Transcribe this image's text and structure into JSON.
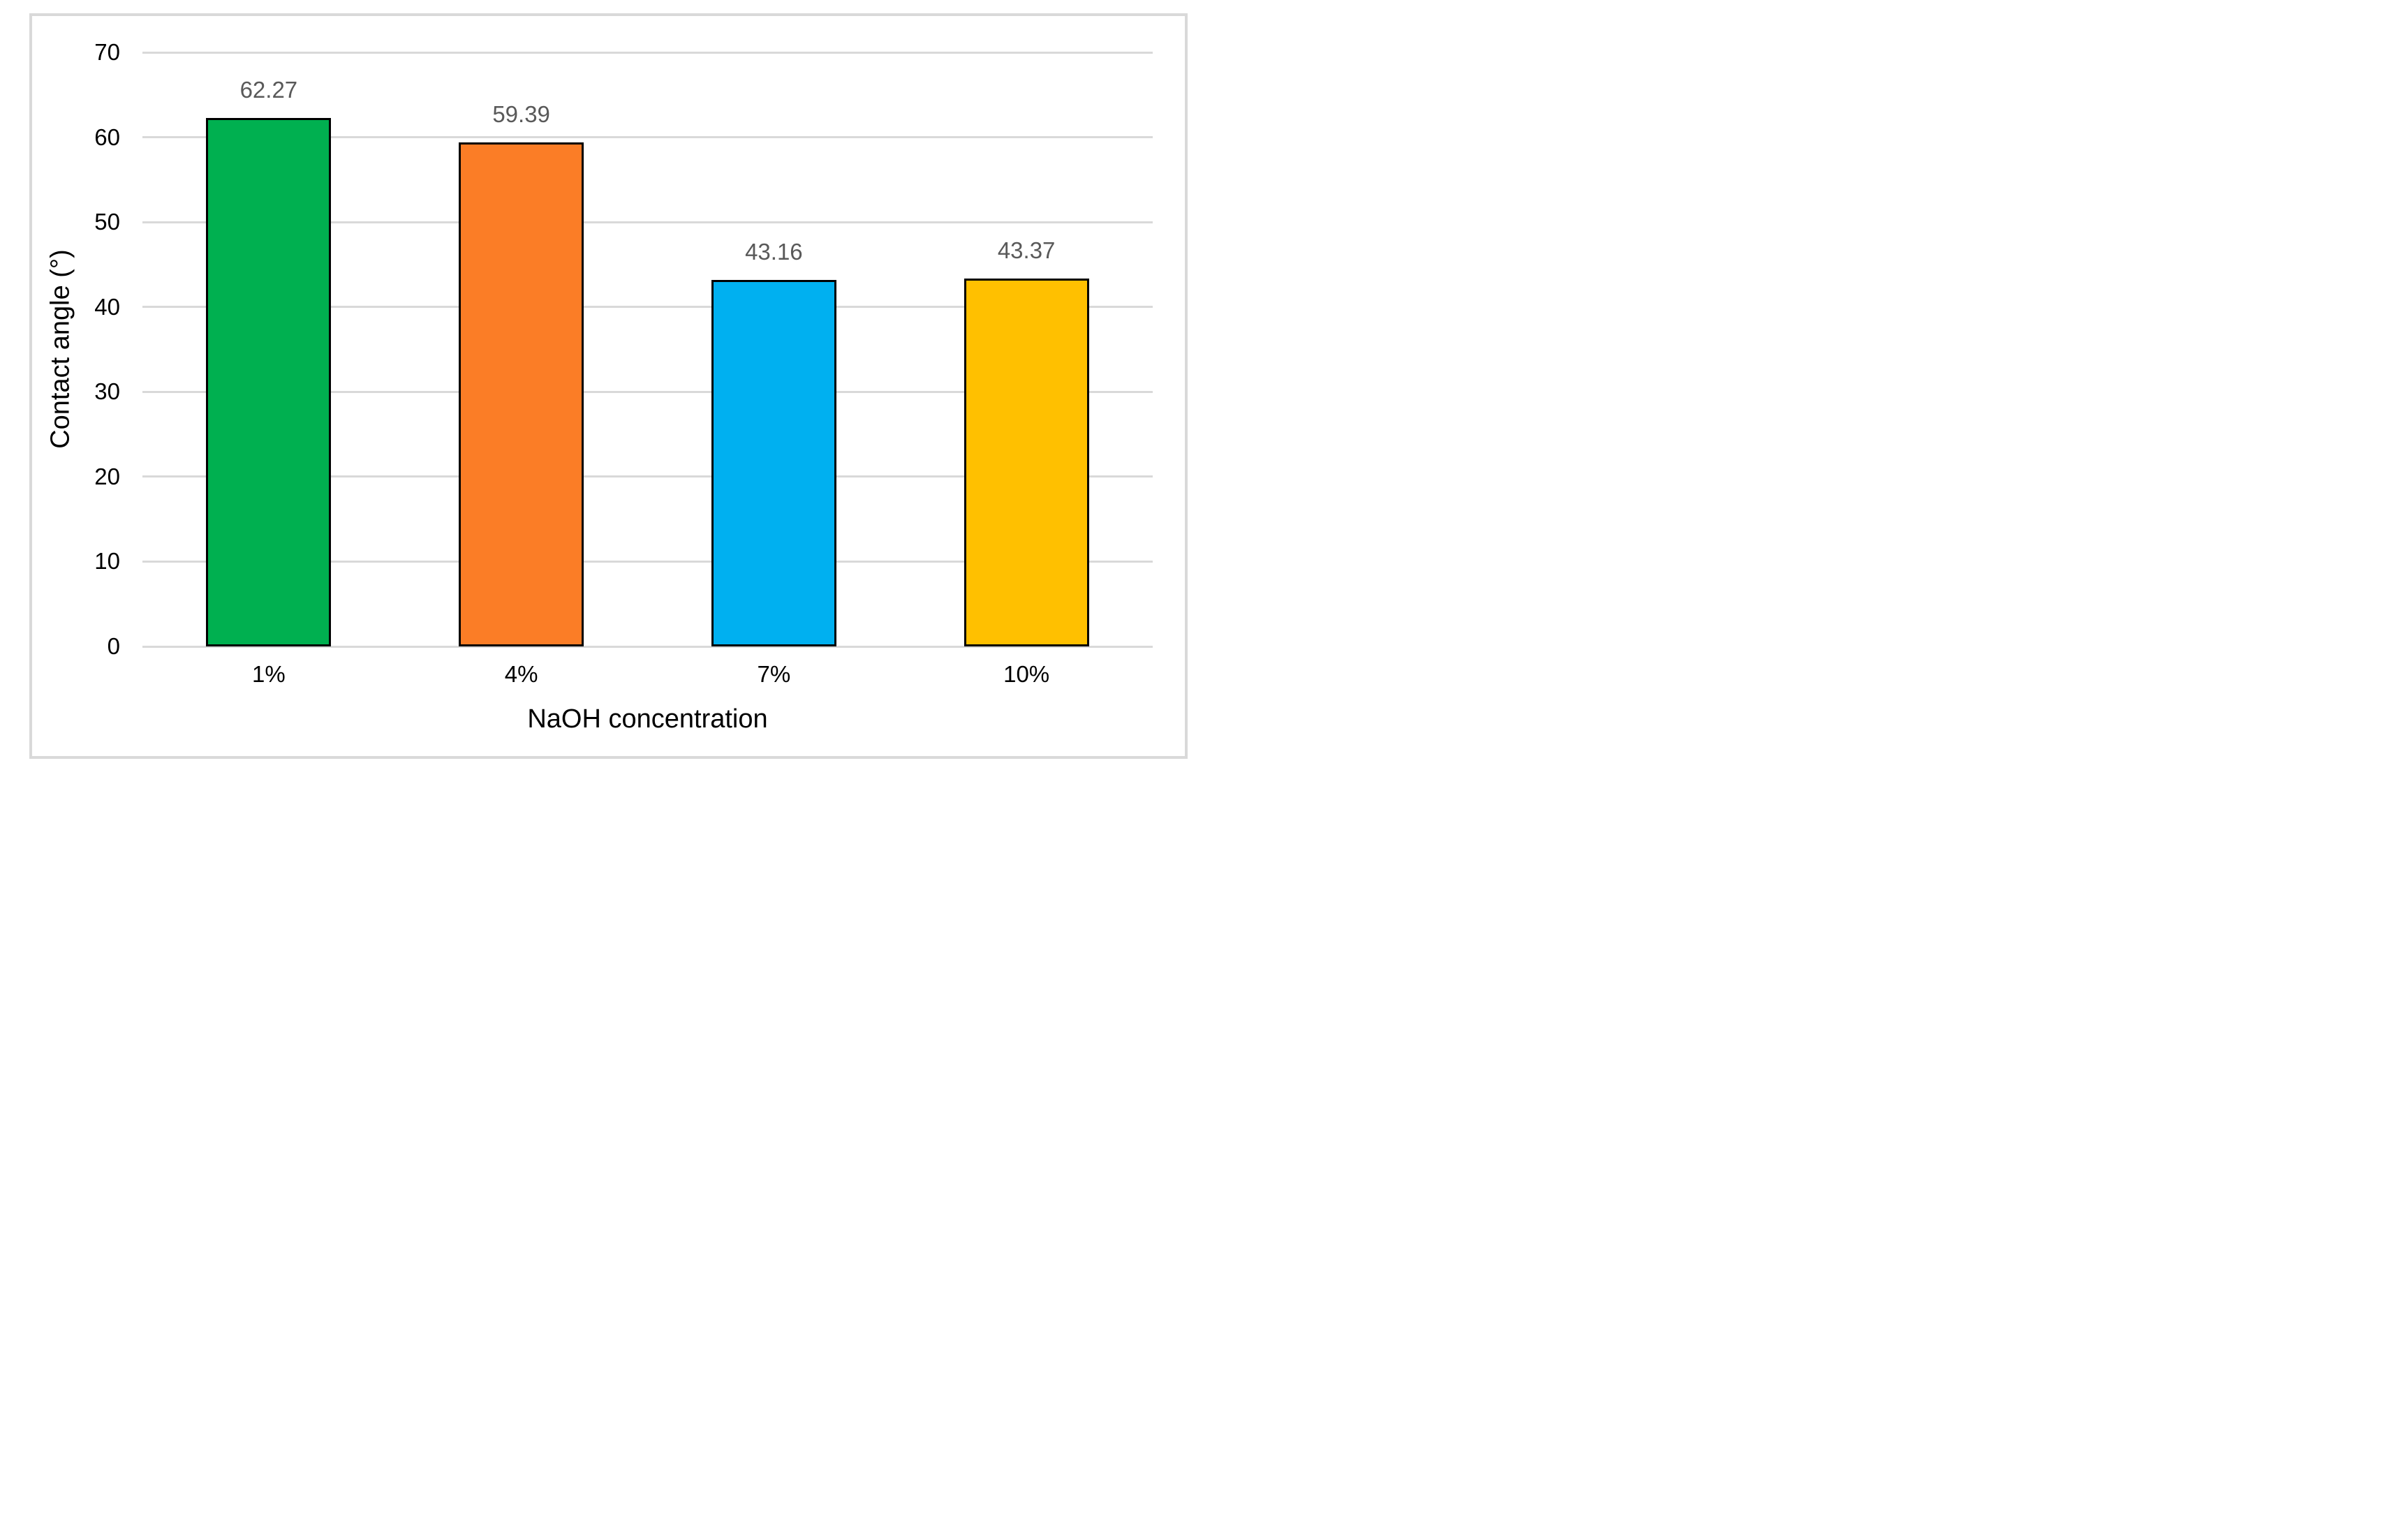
{
  "chart_data": {
    "type": "bar",
    "title": "",
    "categories": [
      "1%",
      "4%",
      "7%",
      "10%"
    ],
    "values": [
      62.27,
      59.39,
      43.16,
      43.37
    ],
    "bar_labels": [
      "62.27",
      "59.39",
      "43.16",
      "43.37"
    ],
    "bar_colors": [
      "#00B050",
      "#FB7D26",
      "#00B0F0",
      "#FFC000"
    ],
    "bar_border_color": "#000000",
    "xlabel": "NaOH concentration",
    "ylabel": "Contact angle (°)",
    "ylim": [
      0,
      70
    ],
    "yticks": [
      0,
      10,
      20,
      30,
      40,
      50,
      60,
      70
    ],
    "grid": "horizontal",
    "gridline_color": "#D9D9D9",
    "axis_line_color": "#D9D9D9",
    "frame_border_color": "#D9D9D9",
    "data_label_color": "#595959",
    "axis_text_color": "#000000",
    "legend": "none",
    "plot_background": "#FFFFFF"
  }
}
